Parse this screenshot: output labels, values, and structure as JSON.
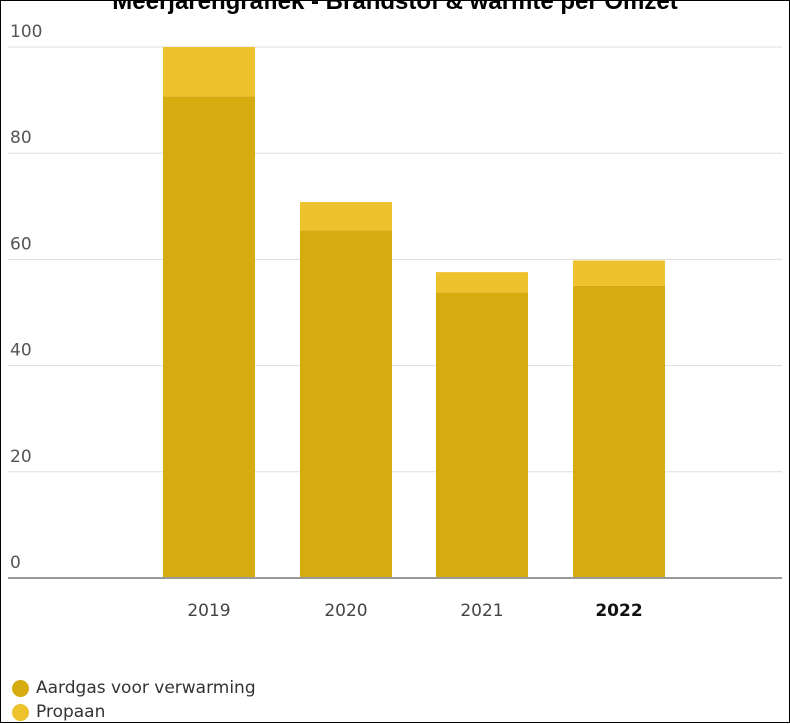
{
  "chart_data": {
    "type": "bar",
    "stacked": true,
    "title": "Meerjarengrafiek - Brandstof & warmte per Omzet",
    "categories": [
      "2019",
      "2020",
      "2021",
      "2022"
    ],
    "highlighted_category": "2022",
    "series": [
      {
        "name": "Aardgas voor verwarming",
        "values": [
          90.7,
          65.5,
          53.8,
          55.0
        ],
        "color": "#D6AB0F"
      },
      {
        "name": "Propaan",
        "values": [
          9.3,
          5.3,
          3.8,
          4.8
        ],
        "color": "#EDC22D"
      }
    ],
    "ylim": [
      0,
      100
    ],
    "yticks": [
      0,
      20,
      40,
      60,
      80,
      100
    ],
    "grid": true,
    "legend_position": "bottom-left"
  },
  "colors": {
    "gridline": "#DDDDDD",
    "baseline": "#999999"
  }
}
